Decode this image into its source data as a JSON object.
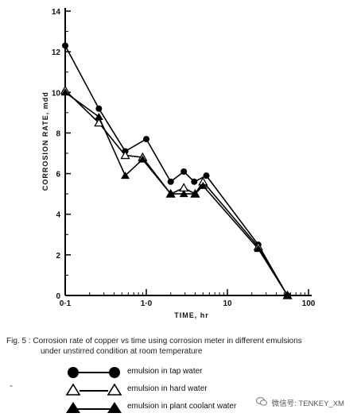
{
  "chart_data": {
    "type": "line",
    "x_scale": "log",
    "xlim": [
      0.1,
      100
    ],
    "ylim": [
      0,
      14
    ],
    "xlabel": "TIME, hr",
    "ylabel": "CORROSION RATE, mdd",
    "x_ticks": [
      {
        "value": 0.1,
        "label": "0·1"
      },
      {
        "value": 1,
        "label": "1·0"
      },
      {
        "value": 10,
        "label": "10"
      },
      {
        "value": 100,
        "label": "100"
      }
    ],
    "y_ticks": [
      {
        "value": 0,
        "label": "0"
      },
      {
        "value": 2,
        "label": "2"
      },
      {
        "value": 4,
        "label": "4"
      },
      {
        "value": 6,
        "label": "6"
      },
      {
        "value": 8,
        "label": "8"
      },
      {
        "value": 10,
        "label": "10"
      },
      {
        "value": 12,
        "label": "12"
      },
      {
        "value": 14,
        "label": "14"
      }
    ],
    "grid": false,
    "series": [
      {
        "name": "emulsion in tap water",
        "marker": "filled-circle",
        "x": [
          0.1,
          0.26,
          0.55,
          1.0,
          2.0,
          2.9,
          3.9,
          5.5,
          24,
          55
        ],
        "y": [
          12.3,
          9.2,
          7.1,
          7.7,
          5.6,
          6.1,
          5.6,
          5.9,
          2.5,
          0
        ]
      },
      {
        "name": "emulsion in hard water",
        "marker": "open-triangle",
        "x": [
          0.1,
          0.26,
          0.55,
          0.9,
          2.0,
          2.9,
          4.0,
          5.0,
          24,
          55
        ],
        "y": [
          10.1,
          8.5,
          6.9,
          6.8,
          5.0,
          5.3,
          5.0,
          5.6,
          2.4,
          0
        ]
      },
      {
        "name": "emulsion in plant coolant water",
        "marker": "filled-triangle",
        "x": [
          0.1,
          0.26,
          0.55,
          0.9,
          2.0,
          2.9,
          4.0,
          5.0,
          24,
          55
        ],
        "y": [
          10.0,
          8.8,
          5.9,
          6.7,
          5.0,
          5.0,
          5.0,
          5.4,
          2.3,
          0
        ]
      }
    ]
  },
  "caption": {
    "prefix": "Fig. 5 :",
    "line1": "Corrosion rate of copper vs time using corrosion meter in different emulsions",
    "line2": "under unstirred condition at room temperature"
  },
  "legend": [
    {
      "label": "emulsion in tap water",
      "marker": "filled-circle"
    },
    {
      "label": "emulsion in hard water",
      "marker": "open-triangle"
    },
    {
      "label": "emulsion in plant coolant water",
      "marker": "filled-triangle"
    }
  ],
  "watermark": {
    "text": "微信号: TENKEY_XM",
    "icon": "wechat-icon"
  },
  "stray_mark": "-"
}
